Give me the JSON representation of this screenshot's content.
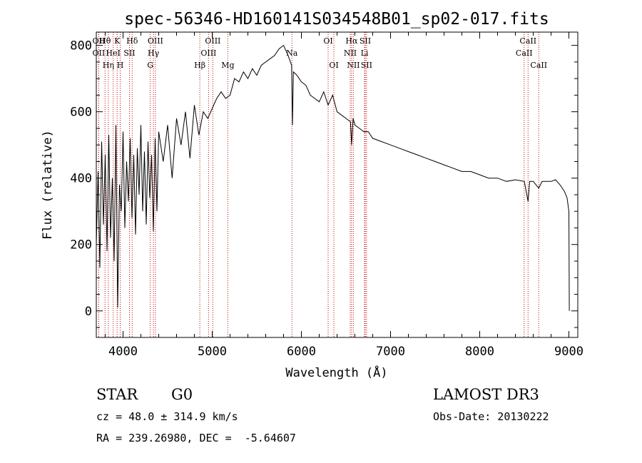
{
  "chart_data": {
    "type": "line",
    "title": "spec-56346-HD160141S034548B01_sp02-017.fits",
    "xlabel": "Wavelength (Å)",
    "ylabel": "Flux (relative)",
    "xlim": [
      3700,
      9100
    ],
    "ylim": [
      -80,
      840
    ],
    "x_ticks": [
      4000,
      5000,
      6000,
      7000,
      8000,
      9000
    ],
    "y_ticks": [
      0,
      200,
      400,
      600,
      800
    ],
    "grid": false,
    "series": [
      {
        "name": "flux",
        "color": "#000000",
        "x": [
          3700,
          3720,
          3740,
          3760,
          3780,
          3800,
          3820,
          3840,
          3860,
          3880,
          3900,
          3920,
          3940,
          3960,
          3980,
          4000,
          4020,
          4040,
          4060,
          4080,
          4100,
          4120,
          4140,
          4160,
          4180,
          4200,
          4220,
          4240,
          4260,
          4280,
          4300,
          4320,
          4340,
          4360,
          4380,
          4400,
          4450,
          4500,
          4550,
          4600,
          4650,
          4700,
          4750,
          4800,
          4850,
          4900,
          4950,
          5000,
          5050,
          5100,
          5150,
          5200,
          5250,
          5300,
          5350,
          5400,
          5450,
          5500,
          5550,
          5600,
          5650,
          5700,
          5750,
          5800,
          5850,
          5890,
          5900,
          5910,
          5950,
          6000,
          6050,
          6100,
          6150,
          6200,
          6250,
          6300,
          6350,
          6400,
          6450,
          6500,
          6550,
          6563,
          6580,
          6600,
          6650,
          6700,
          6750,
          6800,
          6900,
          7000,
          7100,
          7200,
          7300,
          7400,
          7500,
          7600,
          7700,
          7800,
          7900,
          8000,
          8100,
          8200,
          8300,
          8400,
          8500,
          8542,
          8560,
          8600,
          8662,
          8680,
          8700,
          8750,
          8800,
          8850,
          8900,
          8950,
          8980,
          9000,
          9005
        ],
        "y": [
          200,
          420,
          130,
          510,
          260,
          470,
          180,
          530,
          220,
          400,
          150,
          560,
          10,
          380,
          300,
          540,
          250,
          450,
          330,
          520,
          280,
          470,
          230,
          490,
          350,
          560,
          300,
          480,
          260,
          510,
          340,
          470,
          240,
          520,
          300,
          540,
          450,
          560,
          400,
          580,
          500,
          600,
          460,
          620,
          530,
          600,
          580,
          610,
          640,
          660,
          640,
          650,
          700,
          690,
          720,
          700,
          730,
          710,
          740,
          750,
          760,
          770,
          790,
          800,
          770,
          740,
          560,
          720,
          710,
          690,
          680,
          650,
          640,
          630,
          660,
          620,
          650,
          600,
          590,
          580,
          570,
          500,
          580,
          560,
          550,
          540,
          540,
          520,
          510,
          500,
          490,
          480,
          470,
          460,
          450,
          440,
          430,
          420,
          420,
          410,
          400,
          400,
          390,
          395,
          390,
          330,
          390,
          390,
          370,
          380,
          390,
          390,
          390,
          395,
          380,
          360,
          340,
          300,
          0
        ]
      }
    ],
    "spectral_lines": [
      {
        "name": "OII",
        "wavelength": 3727,
        "row": 2
      },
      {
        "name": "Hθ",
        "wavelength": 3798,
        "row": 1
      },
      {
        "name": "OII",
        "wavelength": 3727,
        "row": 1
      },
      {
        "name": "Hη",
        "wavelength": 3835,
        "row": 3
      },
      {
        "name": "HeI",
        "wavelength": 3889,
        "row": 2
      },
      {
        "name": "K",
        "wavelength": 3934,
        "row": 1
      },
      {
        "name": "H",
        "wavelength": 3968,
        "row": 3
      },
      {
        "name": "SII",
        "wavelength": 4072,
        "row": 2
      },
      {
        "name": "Hδ",
        "wavelength": 4102,
        "row": 1
      },
      {
        "name": "G",
        "wavelength": 4305,
        "row": 3
      },
      {
        "name": "Hγ",
        "wavelength": 4341,
        "row": 2
      },
      {
        "name": "OIII",
        "wavelength": 4363,
        "row": 1
      },
      {
        "name": "Hβ",
        "wavelength": 4861,
        "row": 3
      },
      {
        "name": "OIII",
        "wavelength": 4959,
        "row": 2
      },
      {
        "name": "OIII",
        "wavelength": 5007,
        "row": 1
      },
      {
        "name": "Mg",
        "wavelength": 5175,
        "row": 3
      },
      {
        "name": "Na",
        "wavelength": 5894,
        "row": 2
      },
      {
        "name": "OI",
        "wavelength": 6300,
        "row": 1
      },
      {
        "name": "OI",
        "wavelength": 6364,
        "row": 3
      },
      {
        "name": "NII",
        "wavelength": 6548,
        "row": 2
      },
      {
        "name": "Hα",
        "wavelength": 6563,
        "row": 1
      },
      {
        "name": "NII",
        "wavelength": 6583,
        "row": 3
      },
      {
        "name": "Li",
        "wavelength": 6708,
        "row": 2
      },
      {
        "name": "SII",
        "wavelength": 6716,
        "row": 1
      },
      {
        "name": "SII",
        "wavelength": 6731,
        "row": 3
      },
      {
        "name": "CaII",
        "wavelength": 8498,
        "row": 2
      },
      {
        "name": "CaII",
        "wavelength": 8542,
        "row": 1
      },
      {
        "name": "CaII",
        "wavelength": 8662,
        "row": 3
      }
    ]
  },
  "info": {
    "object_class": "STAR",
    "subclass": "G0",
    "survey": "LAMOST DR3",
    "redshift": "cz = 48.0 ± 314.9 km/s",
    "obs_date": "Obs-Date: 20130222",
    "coordinates": "RA = 239.26980, DEC =  -5.64607"
  },
  "colors": {
    "line_marker": "#cc0000",
    "spectrum": "#000000"
  }
}
